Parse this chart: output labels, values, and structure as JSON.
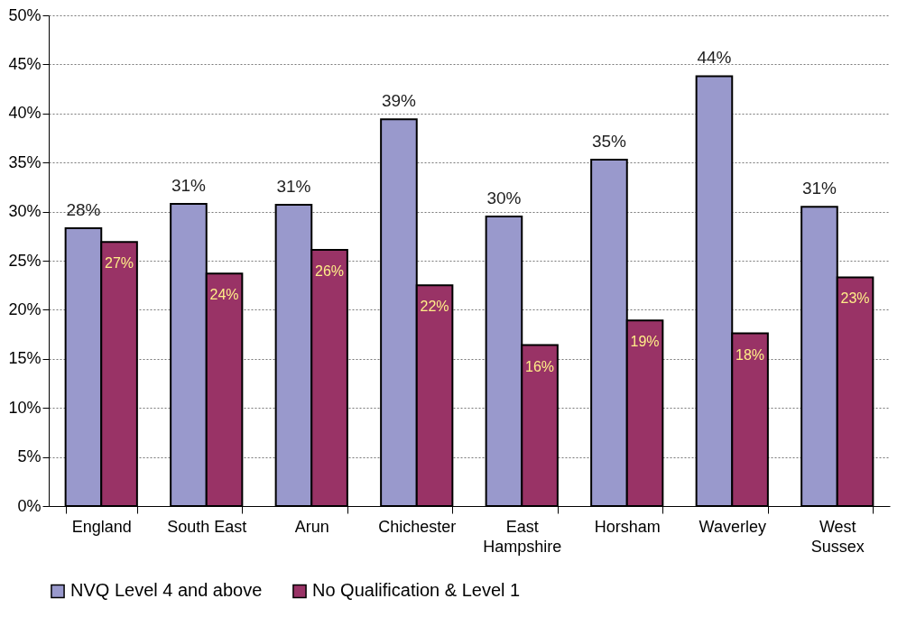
{
  "chart_data": {
    "type": "bar",
    "categories": [
      "England",
      "South East",
      "Arun",
      "Chichester",
      "East Hampshire",
      "Horsham",
      "Waverley",
      "West Sussex"
    ],
    "series": [
      {
        "name": "NVQ Level 4 and above",
        "color": "#9999cc",
        "values": [
          28.3,
          30.8,
          30.7,
          39.4,
          29.5,
          35.3,
          43.8,
          30.5
        ],
        "value_labels": [
          "28%",
          "31%",
          "31%",
          "39%",
          "30%",
          "35%",
          "44%",
          "31%"
        ]
      },
      {
        "name": "No Qualification & Level 1",
        "color": "#993366",
        "values": [
          26.9,
          23.7,
          26.1,
          22.5,
          16.4,
          18.9,
          17.6,
          23.3
        ],
        "value_labels": [
          "27%",
          "24%",
          "26%",
          "22%",
          "16%",
          "19%",
          "18%",
          "23%"
        ]
      }
    ],
    "ylim": [
      0,
      50
    ],
    "yticks": [
      {
        "value": 0,
        "label": "0%"
      },
      {
        "value": 5,
        "label": "5%"
      },
      {
        "value": 10,
        "label": "10%"
      },
      {
        "value": 15,
        "label": "15%"
      },
      {
        "value": 20,
        "label": "20%"
      },
      {
        "value": 25,
        "label": "25%"
      },
      {
        "value": 30,
        "label": "30%"
      },
      {
        "value": 35,
        "label": "35%"
      },
      {
        "value": 40,
        "label": "40%"
      },
      {
        "value": 45,
        "label": "45%"
      },
      {
        "value": 50,
        "label": "50%"
      }
    ],
    "grid": "y",
    "legend": "bottom"
  }
}
